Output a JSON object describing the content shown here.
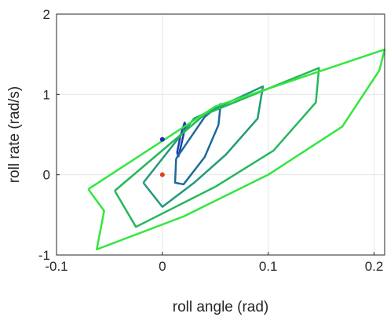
{
  "chart_data": {
    "type": "line",
    "title": "",
    "xlabel": "roll angle (rad)",
    "ylabel": "roll rate (rad/s)",
    "xlim": [
      -0.1,
      0.21
    ],
    "ylim": [
      -1,
      2
    ],
    "xticks": [
      -0.1,
      0,
      0.1,
      0.2
    ],
    "xtick_labels": [
      "-0.1",
      "0",
      "0.1",
      "0.2"
    ],
    "yticks": [
      -1,
      0,
      1,
      2
    ],
    "ytick_labels": [
      "-1",
      "0",
      "1",
      "2"
    ],
    "grid": true,
    "series": [
      {
        "color": "#1a3fb0",
        "points": [
          [
            0.015,
            0.22
          ],
          [
            0.018,
            0.38
          ],
          [
            0.022,
            0.62
          ],
          [
            0.021,
            0.65
          ],
          [
            0.017,
            0.48
          ],
          [
            0.014,
            0.28
          ],
          [
            0.015,
            0.22
          ]
        ]
      },
      {
        "color": "#1e6a9a",
        "points": [
          [
            0.013,
            0.2
          ],
          [
            0.04,
            0.72
          ],
          [
            0.055,
            0.88
          ],
          [
            0.053,
            0.62
          ],
          [
            0.04,
            0.22
          ],
          [
            0.02,
            -0.12
          ],
          [
            0.012,
            -0.1
          ],
          [
            0.013,
            0.2
          ]
        ]
      },
      {
        "color": "#229a7a",
        "points": [
          [
            -0.018,
            -0.1
          ],
          [
            0.03,
            0.7
          ],
          [
            0.095,
            1.1
          ],
          [
            0.09,
            0.7
          ],
          [
            0.06,
            0.25
          ],
          [
            0.03,
            -0.1
          ],
          [
            0.0,
            -0.4
          ],
          [
            -0.018,
            -0.1
          ]
        ]
      },
      {
        "color": "#26b85a",
        "points": [
          [
            -0.045,
            -0.2
          ],
          [
            0.04,
            0.75
          ],
          [
            0.148,
            1.33
          ],
          [
            0.145,
            0.9
          ],
          [
            0.105,
            0.3
          ],
          [
            0.05,
            -0.15
          ],
          [
            -0.025,
            -0.65
          ],
          [
            -0.045,
            -0.2
          ]
        ]
      },
      {
        "color": "#33e640",
        "points": [
          [
            -0.07,
            -0.18
          ],
          [
            0.05,
            0.85
          ],
          [
            0.21,
            1.56
          ],
          [
            0.205,
            1.3
          ],
          [
            0.17,
            0.6
          ],
          [
            0.1,
            0.0
          ],
          [
            0.02,
            -0.52
          ],
          [
            -0.062,
            -0.93
          ],
          [
            -0.055,
            -0.45
          ],
          [
            -0.07,
            -0.18
          ]
        ]
      }
    ],
    "markers": [
      {
        "x": 0.0,
        "y": 0.44,
        "color": "#1a2db8"
      },
      {
        "x": 0.0,
        "y": 0.0,
        "color": "#e0401a"
      }
    ]
  }
}
